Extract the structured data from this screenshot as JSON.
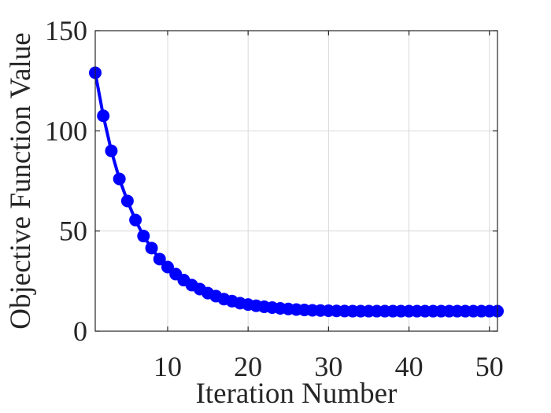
{
  "chart_data": {
    "type": "line",
    "xlabel": "Iteration Number",
    "ylabel": "Objective Function Value",
    "xlim": [
      1,
      51
    ],
    "ylim": [
      0,
      150
    ],
    "x_ticks": [
      10,
      20,
      30,
      40,
      50
    ],
    "y_ticks": [
      0,
      50,
      100,
      150
    ],
    "x_tick_labels": [
      "10",
      "20",
      "30",
      "40",
      "50"
    ],
    "y_tick_labels": [
      "0",
      "50",
      "100",
      "150"
    ],
    "grid": true,
    "series": [
      {
        "color": "#0000ff",
        "marker": "circle",
        "x": [
          1,
          2,
          3,
          4,
          5,
          6,
          7,
          8,
          9,
          10,
          11,
          12,
          13,
          14,
          15,
          16,
          17,
          18,
          19,
          20,
          21,
          22,
          23,
          24,
          25,
          26,
          27,
          28,
          29,
          30,
          31,
          32,
          33,
          34,
          35,
          36,
          37,
          38,
          39,
          40,
          41,
          42,
          43,
          44,
          45,
          46,
          47,
          48,
          49,
          50,
          51
        ],
        "values": [
          129,
          107.5,
          90,
          76,
          65,
          55.5,
          47.5,
          41.5,
          36,
          32,
          28.5,
          25.5,
          23,
          21,
          19,
          17.5,
          16,
          15,
          14,
          13.3,
          12.7,
          12.2,
          11.8,
          11.4,
          11.1,
          10.8,
          10.6,
          10.4,
          10.3,
          10.2,
          10.1,
          10.05,
          10,
          10,
          10,
          10,
          10,
          10,
          10,
          10,
          10,
          10,
          10,
          10,
          10,
          10,
          10,
          10,
          10,
          10,
          10
        ]
      }
    ]
  }
}
